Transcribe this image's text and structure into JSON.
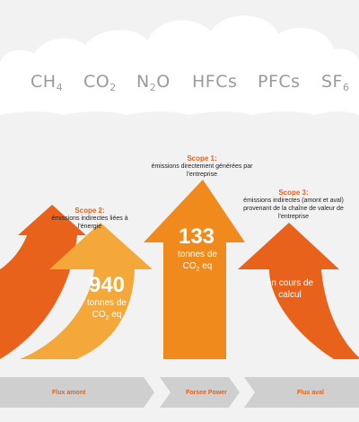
{
  "gases": [
    {
      "base": "CH",
      "sub": "4",
      "tail": ""
    },
    {
      "base": "CO",
      "sub": "2",
      "tail": ""
    },
    {
      "base": "N",
      "sub": "2",
      "tail": "O"
    },
    {
      "base": "HFCs",
      "sub": "",
      "tail": ""
    },
    {
      "base": "PFCs",
      "sub": "",
      "tail": ""
    },
    {
      "base": "SF",
      "sub": "6",
      "tail": ""
    }
  ],
  "scope1": {
    "title": "Scope 1:",
    "desc": "émissions directement générées par l'entreprise",
    "value": "133",
    "unit_line1": "tonnes de",
    "unit_base": "CO",
    "unit_sub": "2",
    "unit_tail": " eq"
  },
  "scope2": {
    "title": "Scope 2:",
    "desc": "émissions indirectes liées à l'énergie",
    "value": "940",
    "unit_line1": "tonnes de",
    "unit_base": "CO",
    "unit_sub": "2",
    "unit_tail": " eq"
  },
  "scope3": {
    "title": "Scope 3:",
    "desc": "émissions indirectes (amont et aval) provenant de la chaîne de valeur de l'entreprise",
    "status": "en cours de calcul"
  },
  "flows": {
    "upstream": "Flux amont",
    "core": "Forsee Power",
    "downstream": "Flux aval"
  },
  "colors": {
    "orange_dark": "#e8621c",
    "orange_mid": "#f08a1c",
    "orange_light": "#f5a83a",
    "gray_band": "#cfcfcf",
    "gas_text": "#9a9a9a"
  }
}
